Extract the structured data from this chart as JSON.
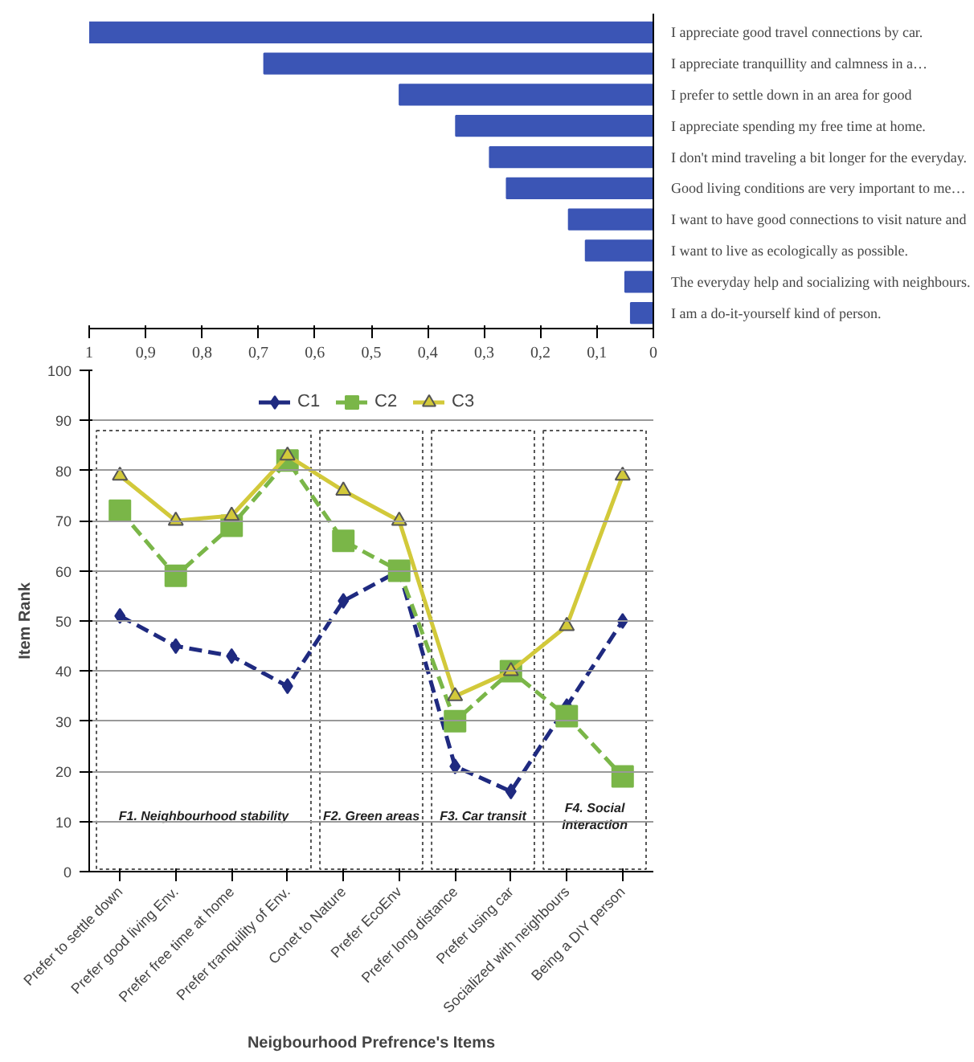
{
  "chart_data": [
    {
      "type": "bar",
      "orientation": "horizontal",
      "categories": [
        "I appreciate good travel connections by car.",
        "I appreciate tranquillity and calmness in a…",
        "I prefer to settle down in an area for good",
        "I appreciate spending my free time at home.",
        "I don't mind traveling a bit longer for the everyday.",
        "Good living conditions are very important to me…",
        "I want to have good connections to visit nature and",
        "I want to live as ecologically as possible.",
        "The everyday help and socializing with neighbours.",
        "I am a do-it-yourself kind of person."
      ],
      "values": [
        1,
        0.69,
        0.45,
        0.35,
        0.29,
        0.26,
        0.15,
        0.12,
        0.05,
        0.04
      ],
      "color": "#3b55b5",
      "xlim": [
        1,
        0
      ],
      "xticks": [
        1,
        {
          "value": 0.9,
          "label": "0,9"
        },
        {
          "value": 0.8,
          "label": "0,8"
        },
        {
          "value": 0.7,
          "label": "0,7"
        },
        {
          "value": 0.6,
          "label": "0,6"
        },
        {
          "value": 0.5,
          "label": "0,5"
        },
        {
          "value": 0.4,
          "label": "0,4"
        },
        {
          "value": 0.3,
          "label": "0,3"
        },
        {
          "value": 0.2,
          "label": "0,2"
        },
        {
          "value": 0.1,
          "label": "0,1"
        },
        0
      ],
      "grid": false
    },
    {
      "type": "line",
      "xlabel": "Neigbourhood Prefrence's Items",
      "ylabel": "Item Rank",
      "categories": [
        "Prefer to settle down",
        "Prefer good living Env.",
        "Prefer free time at home",
        "Prefer tranquility of Env.",
        "Conet to Nature",
        "Prefer EcoEnv",
        "Prefer long distance",
        "Prefer using car",
        "Socialized with neighbours",
        "Being a DIY person"
      ],
      "series": [
        {
          "name": "C1",
          "color": "#1f2a80",
          "marker": "diamond",
          "line_style": "dashed",
          "values": [
            51,
            45,
            43,
            37,
            54,
            60,
            21,
            16,
            33,
            50
          ]
        },
        {
          "name": "C2",
          "color": "#7ab648",
          "marker": "square",
          "line_style": "dashed",
          "values": [
            72,
            59,
            69,
            82,
            66,
            60,
            30,
            40,
            31,
            19
          ]
        },
        {
          "name": "C3",
          "color": "#d2c93a",
          "marker": "triangle",
          "line_style": "solid",
          "values": [
            79,
            70,
            71,
            83,
            76,
            70,
            35,
            40,
            49,
            79
          ]
        }
      ],
      "ylim": [
        0,
        100
      ],
      "yticks": [
        0,
        10,
        20,
        30,
        40,
        50,
        60,
        70,
        80,
        90,
        100
      ],
      "grid": "y",
      "legend": "top",
      "bands": [
        {
          "axis": "x",
          "from": "Prefer to settle down",
          "to": "Prefer tranquility of Env.",
          "label": "F1. Neighbourhood stability",
          "color": "#ffffff"
        },
        {
          "axis": "x",
          "from": "Conet to Nature",
          "to": "Prefer EcoEnv",
          "label": "F2. Green areas",
          "color": "#ffffff"
        },
        {
          "axis": "x",
          "from": "Prefer long distance",
          "to": "Prefer using car",
          "label": "F3. Car transit",
          "color": "#ffffff"
        },
        {
          "axis": "x",
          "from": "Socialized with neighbours",
          "to": "Being a DIY person",
          "label": "F4. Social\ninteraction",
          "color": "#ffffff"
        }
      ]
    }
  ]
}
